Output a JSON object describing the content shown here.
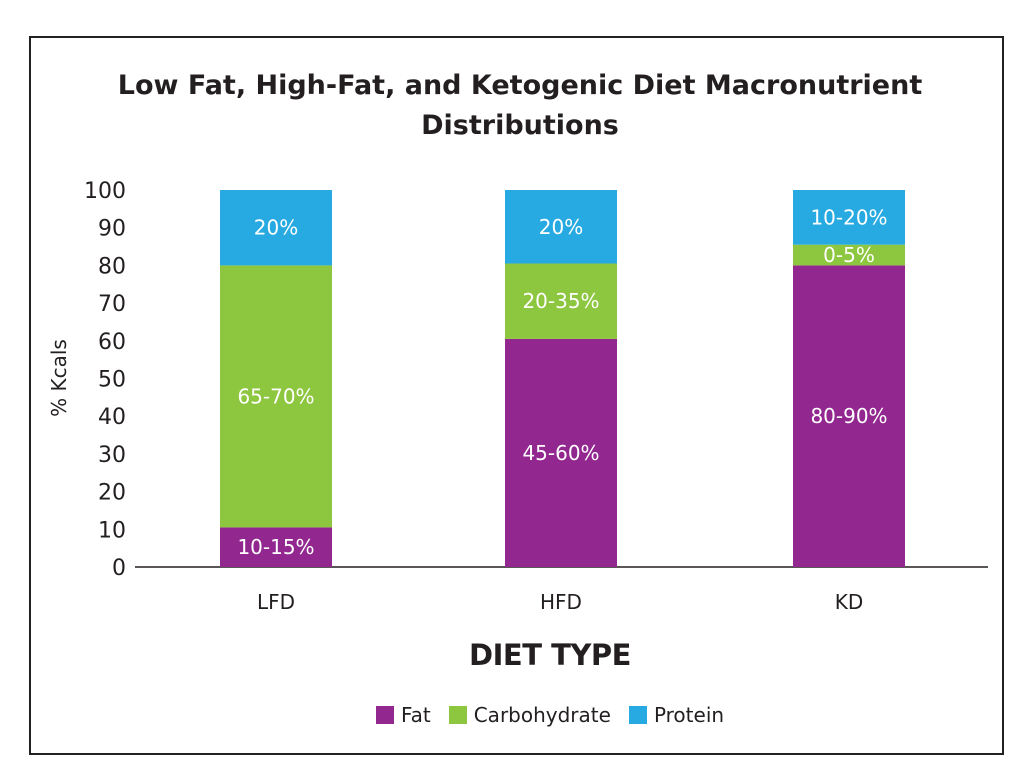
{
  "chart_data": {
    "type": "bar",
    "stacked": true,
    "title": "Low Fat, High-Fat, and Ketogenic Diet Macronutrient Distributions",
    "xlabel": "DIET TYPE",
    "ylabel": "% Kcals",
    "ylim": [
      0,
      100
    ],
    "yticks": [
      "0",
      "10",
      "20",
      "30",
      "40",
      "50",
      "60",
      "70",
      "80",
      "90",
      "100"
    ],
    "categories": [
      "LFD",
      "HFD",
      "KD"
    ],
    "series": [
      {
        "name": "Fat",
        "color": "#92278f",
        "values": [
          10.5,
          60.5,
          80
        ],
        "labels": [
          "10-15%",
          "45-60%",
          "80-90%"
        ]
      },
      {
        "name": "Carbohydrate",
        "color": "#8dc63f",
        "values": [
          69.5,
          20,
          5.5
        ],
        "labels": [
          "65-70%",
          "20-35%",
          "0-5%"
        ]
      },
      {
        "name": "Protein",
        "color": "#27aae1",
        "values": [
          20,
          19.5,
          14.5
        ],
        "labels": [
          "20%",
          "20%",
          "10-20%"
        ]
      }
    ],
    "grid": false,
    "legend_position": "bottom"
  }
}
